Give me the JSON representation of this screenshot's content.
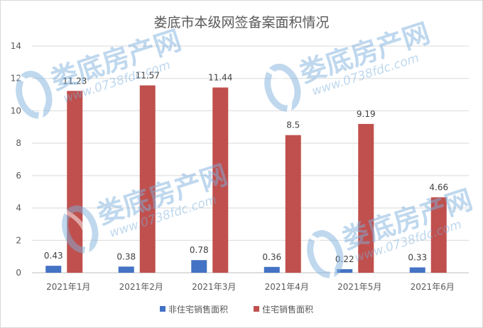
{
  "chart_data": {
    "type": "bar",
    "title": "娄底市本级网签备案面积情况",
    "categories": [
      "2021年1月",
      "2021年2月",
      "2021年3月",
      "2021年4月",
      "2021年5月",
      "2021年6月"
    ],
    "series": [
      {
        "name": "非住宅销售面积",
        "values": [
          0.43,
          0.38,
          0.78,
          0.36,
          0.22,
          0.33
        ],
        "labels": [
          "0.43",
          "0.38",
          "0.78",
          "0.36",
          "0.22",
          "0.33"
        ],
        "color": "#4472C4"
      },
      {
        "name": "住宅销售面积",
        "values": [
          11.23,
          11.57,
          11.44,
          8.5,
          9.19,
          4.66
        ],
        "labels": [
          "11.23",
          "11.57",
          "11.44",
          "8.5",
          "9.19",
          "4.66"
        ],
        "color": "#C0504D"
      }
    ],
    "ylim": [
      0,
      14
    ],
    "yticks": [
      "0",
      "2",
      "4",
      "6",
      "8",
      "10",
      "12",
      "14"
    ],
    "xlabel": "",
    "ylabel": "",
    "grid": true,
    "legend": "bottom"
  },
  "watermark": {
    "name": "娄底房产网",
    "url": "www.0738fdc.com",
    "color": "#7fb0dc"
  }
}
